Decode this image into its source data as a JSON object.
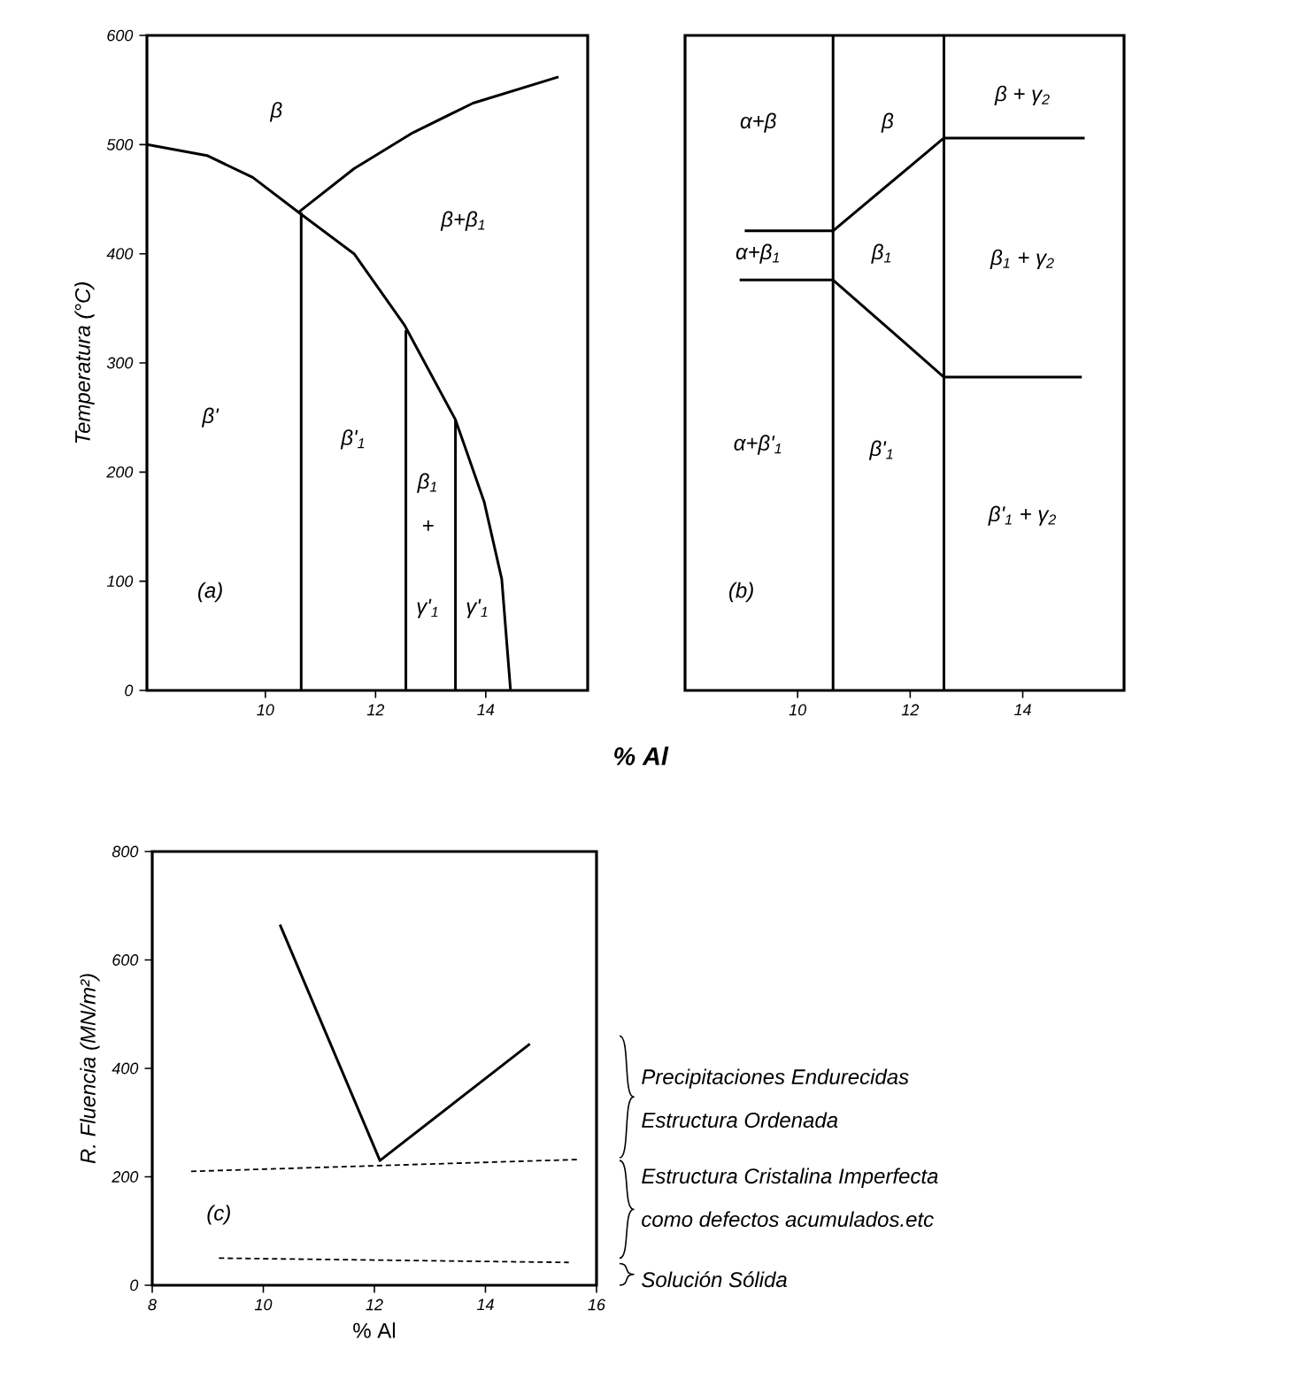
{
  "chart_data": [
    {
      "type": "line",
      "ylabel": "Temperatura (°C)",
      "xlabel": "% Al",
      "xlim": [
        7.85,
        15.85
      ],
      "ylim": [
        0,
        600
      ],
      "xticks": [
        10,
        12,
        14
      ],
      "yticks": [
        0,
        100,
        200,
        300,
        400,
        500,
        600
      ],
      "series": [
        {
          "color": "#000000",
          "x": [
            7.85,
            8.94,
            9.77,
            10.6,
            11.61,
            12.52,
            13.45,
            13.97,
            14.29,
            14.45
          ],
          "values": [
            500,
            490,
            470,
            438,
            400,
            335,
            248,
            173,
            102,
            0
          ]
        },
        {
          "color": "#000000",
          "x": [
            10.6,
            11.61,
            12.68,
            13.77,
            15.32
          ],
          "values": [
            438,
            478,
            511,
            538,
            562
          ]
        },
        {
          "color": "#000000",
          "x": [
            10.65,
            10.65
          ],
          "values": [
            0,
            438
          ]
        },
        {
          "color": "#000000",
          "x": [
            12.55,
            12.55
          ],
          "values": [
            0,
            330
          ]
        },
        {
          "color": "#000000",
          "x": [
            13.45,
            13.45
          ],
          "values": [
            0,
            248
          ]
        }
      ],
      "annotations": [
        "β",
        "β+β$_{1}$",
        "β'",
        "β'$_{1}$",
        "β$_{1}$",
        "+",
        "γ'$_{1}$",
        "γ'$_{1}$",
        "(a)"
      ]
    },
    {
      "type": "line",
      "xlim": [
        8.0,
        15.8
      ],
      "ylim": [
        0,
        600
      ],
      "xticks": [
        10,
        12,
        14
      ],
      "tick_labels": "x",
      "series": [
        {
          "color": "#000000",
          "x": [
            10.63,
            10.63
          ],
          "values": [
            0,
            600
          ]
        },
        {
          "color": "#000000",
          "x": [
            12.6,
            12.6
          ],
          "values": [
            0,
            600
          ]
        },
        {
          "color": "#000000",
          "x": [
            9.06,
            10.63,
            12.6,
            15.1
          ],
          "values": [
            421,
            421,
            506,
            506
          ]
        },
        {
          "color": "#000000",
          "x": [
            8.97,
            10.63,
            12.6,
            15.05
          ],
          "values": [
            376,
            376,
            287,
            287
          ]
        }
      ],
      "annotations": [
        "α+β",
        "β",
        "β + γ$_{2}$",
        "α+β$_{1}$",
        "β$_{1}$",
        "β$_{1}$ + γ$_{2}$",
        "α+β'$_{1}$",
        "β'$_{1}$",
        "β'$_{1}$ + γ$_{2}$",
        "(b)"
      ]
    },
    {
      "type": "line",
      "xlabel": "% Al",
      "ylabel": "R. Fluencia (MN/m²)",
      "xlim": [
        8,
        16
      ],
      "ylim": [
        0,
        800
      ],
      "xticks": [
        8,
        10,
        12,
        14,
        16
      ],
      "yticks": [
        0,
        200,
        400,
        600,
        800
      ],
      "series": [
        {
          "color": "#000000",
          "x": [
            10.3,
            12.1,
            14.8
          ],
          "values": [
            665,
            230,
            445
          ]
        },
        {
          "color": "#000000",
          "line_style": "dashed",
          "x": [
            8.7,
            15.7
          ],
          "values": [
            210,
            232
          ]
        },
        {
          "color": "#000000",
          "line_style": "dashed",
          "x": [
            9.2,
            15.5
          ],
          "values": [
            50,
            42
          ]
        }
      ],
      "annotations": [
        "(c)",
        "Precipitaciones Endurecidas",
        "Estructura Ordenada",
        "Estructura Cristalina Imperfecta",
        "como defectos acumulados.etc",
        "Solución Sólida"
      ]
    }
  ]
}
